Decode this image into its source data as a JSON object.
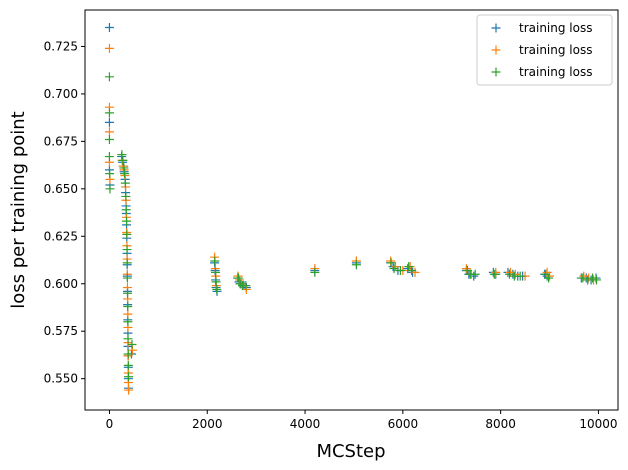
{
  "chart_data": {
    "type": "scatter",
    "marker": "plus",
    "xlabel": "MCStep",
    "ylabel": "loss per training point",
    "xlim": [
      -500,
      10400
    ],
    "ylim": [
      0.5335,
      0.7442
    ],
    "xticks": [
      0,
      2000,
      4000,
      6000,
      8000,
      10000
    ],
    "yticks": [
      0.55,
      0.575,
      0.6,
      0.625,
      0.65,
      0.675,
      0.7,
      0.725
    ],
    "ytick_labels": [
      "0.550",
      "0.575",
      "0.600",
      "0.625",
      "0.650",
      "0.675",
      "0.700",
      "0.725"
    ],
    "grid": false,
    "legend": "top-right",
    "series": [
      {
        "name": "training loss",
        "color": "#1f77b4",
        "points": [
          [
            0,
            0.735
          ],
          [
            0,
            0.685
          ],
          [
            0,
            0.66
          ],
          [
            10,
            0.652
          ],
          [
            250,
            0.667
          ],
          [
            270,
            0.664
          ],
          [
            290,
            0.662
          ],
          [
            300,
            0.659
          ],
          [
            320,
            0.655
          ],
          [
            330,
            0.648
          ],
          [
            340,
            0.641
          ],
          [
            345,
            0.637
          ],
          [
            350,
            0.631
          ],
          [
            355,
            0.624
          ],
          [
            360,
            0.616
          ],
          [
            362,
            0.61
          ],
          [
            365,
            0.604
          ],
          [
            370,
            0.596
          ],
          [
            372,
            0.589
          ],
          [
            375,
            0.581
          ],
          [
            378,
            0.574
          ],
          [
            380,
            0.567
          ],
          [
            382,
            0.562
          ],
          [
            385,
            0.556
          ],
          [
            388,
            0.55
          ],
          [
            390,
            0.545
          ],
          [
            450,
            0.563
          ],
          [
            2150,
            0.611
          ],
          [
            2160,
            0.607
          ],
          [
            2170,
            0.602
          ],
          [
            2180,
            0.598
          ],
          [
            2200,
            0.596
          ],
          [
            2620,
            0.603
          ],
          [
            2650,
            0.601
          ],
          [
            2680,
            0.6
          ],
          [
            2750,
            0.599
          ],
          [
            2800,
            0.598
          ],
          [
            4200,
            0.607
          ],
          [
            5050,
            0.611
          ],
          [
            5750,
            0.611
          ],
          [
            5800,
            0.609
          ],
          [
            5900,
            0.607
          ],
          [
            6100,
            0.608
          ],
          [
            6200,
            0.606
          ],
          [
            7300,
            0.607
          ],
          [
            7350,
            0.605
          ],
          [
            7450,
            0.604
          ],
          [
            7850,
            0.606
          ],
          [
            7900,
            0.605
          ],
          [
            8150,
            0.606
          ],
          [
            8250,
            0.605
          ],
          [
            8350,
            0.604
          ],
          [
            8450,
            0.604
          ],
          [
            8900,
            0.605
          ],
          [
            8950,
            0.604
          ],
          [
            9650,
            0.603
          ],
          [
            9750,
            0.603
          ],
          [
            9850,
            0.602
          ],
          [
            9950,
            0.603
          ]
        ]
      },
      {
        "name": "training loss",
        "color": "#ff7f0e",
        "points": [
          [
            0,
            0.724
          ],
          [
            0,
            0.693
          ],
          [
            0,
            0.68
          ],
          [
            0,
            0.664
          ],
          [
            10,
            0.655
          ],
          [
            260,
            0.665
          ],
          [
            280,
            0.662
          ],
          [
            300,
            0.66
          ],
          [
            315,
            0.657
          ],
          [
            328,
            0.651
          ],
          [
            338,
            0.644
          ],
          [
            348,
            0.635
          ],
          [
            352,
            0.627
          ],
          [
            358,
            0.62
          ],
          [
            362,
            0.613
          ],
          [
            366,
            0.605
          ],
          [
            368,
            0.598
          ],
          [
            372,
            0.592
          ],
          [
            376,
            0.584
          ],
          [
            379,
            0.577
          ],
          [
            381,
            0.569
          ],
          [
            384,
            0.562
          ],
          [
            386,
            0.553
          ],
          [
            388,
            0.548
          ],
          [
            392,
            0.544
          ],
          [
            470,
            0.565
          ],
          [
            2150,
            0.614
          ],
          [
            2165,
            0.608
          ],
          [
            2175,
            0.604
          ],
          [
            2185,
            0.599
          ],
          [
            2630,
            0.604
          ],
          [
            2660,
            0.602
          ],
          [
            2700,
            0.6
          ],
          [
            2800,
            0.597
          ],
          [
            4200,
            0.608
          ],
          [
            5050,
            0.612
          ],
          [
            5750,
            0.612
          ],
          [
            5850,
            0.609
          ],
          [
            6000,
            0.607
          ],
          [
            6150,
            0.609
          ],
          [
            6250,
            0.606
          ],
          [
            7300,
            0.608
          ],
          [
            7400,
            0.605
          ],
          [
            7900,
            0.606
          ],
          [
            8200,
            0.606
          ],
          [
            8300,
            0.605
          ],
          [
            8500,
            0.604
          ],
          [
            8950,
            0.606
          ],
          [
            9000,
            0.604
          ],
          [
            9700,
            0.604
          ],
          [
            9800,
            0.603
          ],
          [
            9900,
            0.602
          ]
        ]
      },
      {
        "name": "training loss",
        "color": "#2ca02c",
        "points": [
          [
            0,
            0.709
          ],
          [
            0,
            0.69
          ],
          [
            0,
            0.676
          ],
          [
            0,
            0.667
          ],
          [
            5,
            0.658
          ],
          [
            10,
            0.65
          ],
          [
            255,
            0.668
          ],
          [
            275,
            0.665
          ],
          [
            295,
            0.661
          ],
          [
            310,
            0.658
          ],
          [
            325,
            0.653
          ],
          [
            335,
            0.646
          ],
          [
            342,
            0.639
          ],
          [
            350,
            0.633
          ],
          [
            356,
            0.626
          ],
          [
            360,
            0.618
          ],
          [
            364,
            0.611
          ],
          [
            367,
            0.603
          ],
          [
            370,
            0.595
          ],
          [
            374,
            0.588
          ],
          [
            377,
            0.58
          ],
          [
            380,
            0.571
          ],
          [
            383,
            0.563
          ],
          [
            386,
            0.557
          ],
          [
            389,
            0.551
          ],
          [
            460,
            0.568
          ],
          [
            2155,
            0.612
          ],
          [
            2170,
            0.606
          ],
          [
            2180,
            0.601
          ],
          [
            2195,
            0.597
          ],
          [
            2640,
            0.603
          ],
          [
            2670,
            0.6
          ],
          [
            2720,
            0.599
          ],
          [
            2790,
            0.599
          ],
          [
            4200,
            0.606
          ],
          [
            5050,
            0.61
          ],
          [
            5760,
            0.611
          ],
          [
            5820,
            0.608
          ],
          [
            5950,
            0.607
          ],
          [
            6120,
            0.609
          ],
          [
            6180,
            0.607
          ],
          [
            7320,
            0.607
          ],
          [
            7380,
            0.605
          ],
          [
            7480,
            0.605
          ],
          [
            7870,
            0.605
          ],
          [
            8180,
            0.605
          ],
          [
            8280,
            0.604
          ],
          [
            8400,
            0.604
          ],
          [
            8920,
            0.605
          ],
          [
            8980,
            0.603
          ],
          [
            9680,
            0.603
          ],
          [
            9780,
            0.602
          ],
          [
            9880,
            0.603
          ],
          [
            9960,
            0.602
          ]
        ]
      }
    ]
  }
}
